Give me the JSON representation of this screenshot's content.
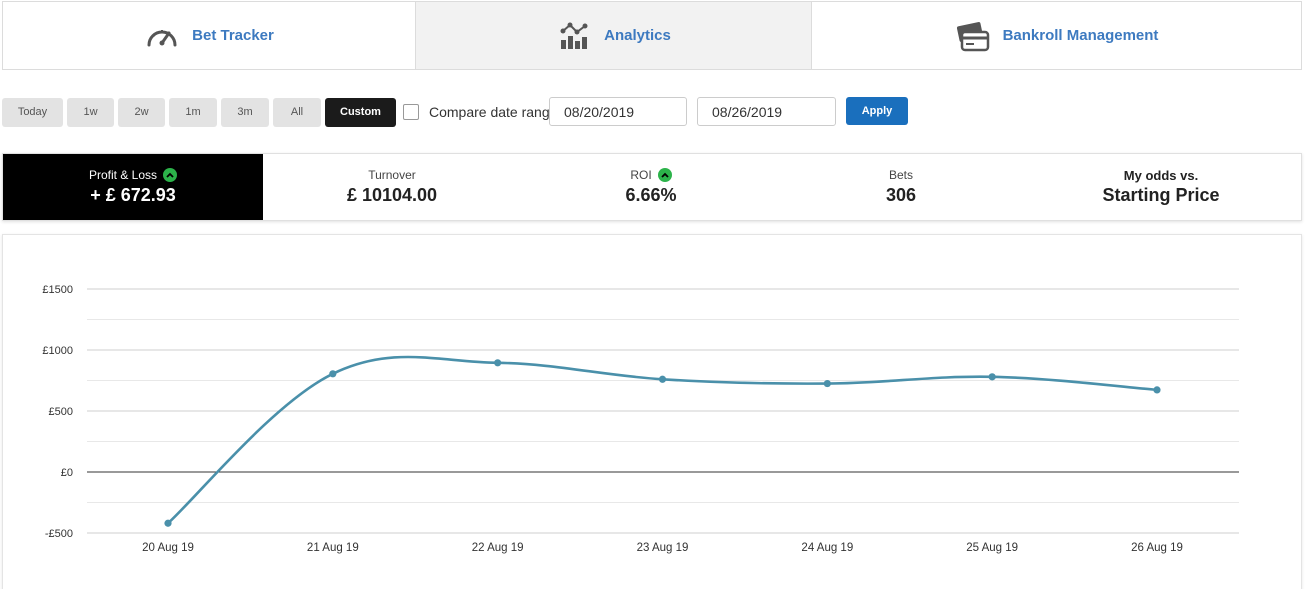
{
  "tabs": [
    {
      "label": "Bet Tracker",
      "icon": "speedometer-icon"
    },
    {
      "label": "Analytics",
      "icon": "analytics-icon"
    },
    {
      "label": "Bankroll Management",
      "icon": "wallet-cards-icon"
    }
  ],
  "period_buttons": [
    "Today",
    "1w",
    "2w",
    "1m",
    "3m",
    "All",
    "Custom"
  ],
  "active_period": "Custom",
  "compare": {
    "label": "Compare date range",
    "checked": false
  },
  "date_range": {
    "start": "08/20/2019",
    "end": "08/26/2019"
  },
  "apply_label": "Apply",
  "stats": {
    "profit_loss": {
      "label": "Profit & Loss",
      "value": "+ £ 672.93"
    },
    "turnover": {
      "label": "Turnover",
      "value": "£ 10104.00"
    },
    "roi": {
      "label": "ROI",
      "value": "6.66%"
    },
    "bets": {
      "label": "Bets",
      "value": "306"
    },
    "odds": {
      "line1": "My odds vs.",
      "line2": "Starting Price"
    }
  },
  "colors": {
    "accent": "#3d7ac0",
    "apply": "#1a6fbd",
    "up": "#2cb34a",
    "line": "#4a90aa"
  },
  "chart_data": {
    "type": "line",
    "categories": [
      "20 Aug 19",
      "21 Aug 19",
      "22 Aug 19",
      "23 Aug 19",
      "24 Aug 19",
      "25 Aug 19",
      "26 Aug 19"
    ],
    "series": [
      {
        "values": [
          -420,
          805,
          895,
          760,
          725,
          780,
          673
        ]
      }
    ],
    "y_ticks": [
      -500,
      0,
      500,
      1000,
      1500
    ],
    "y_tick_labels": [
      "-£500",
      "£0",
      "£500",
      "£1000",
      "£1500"
    ],
    "ylim": [
      -500,
      1500
    ],
    "grid": true
  }
}
